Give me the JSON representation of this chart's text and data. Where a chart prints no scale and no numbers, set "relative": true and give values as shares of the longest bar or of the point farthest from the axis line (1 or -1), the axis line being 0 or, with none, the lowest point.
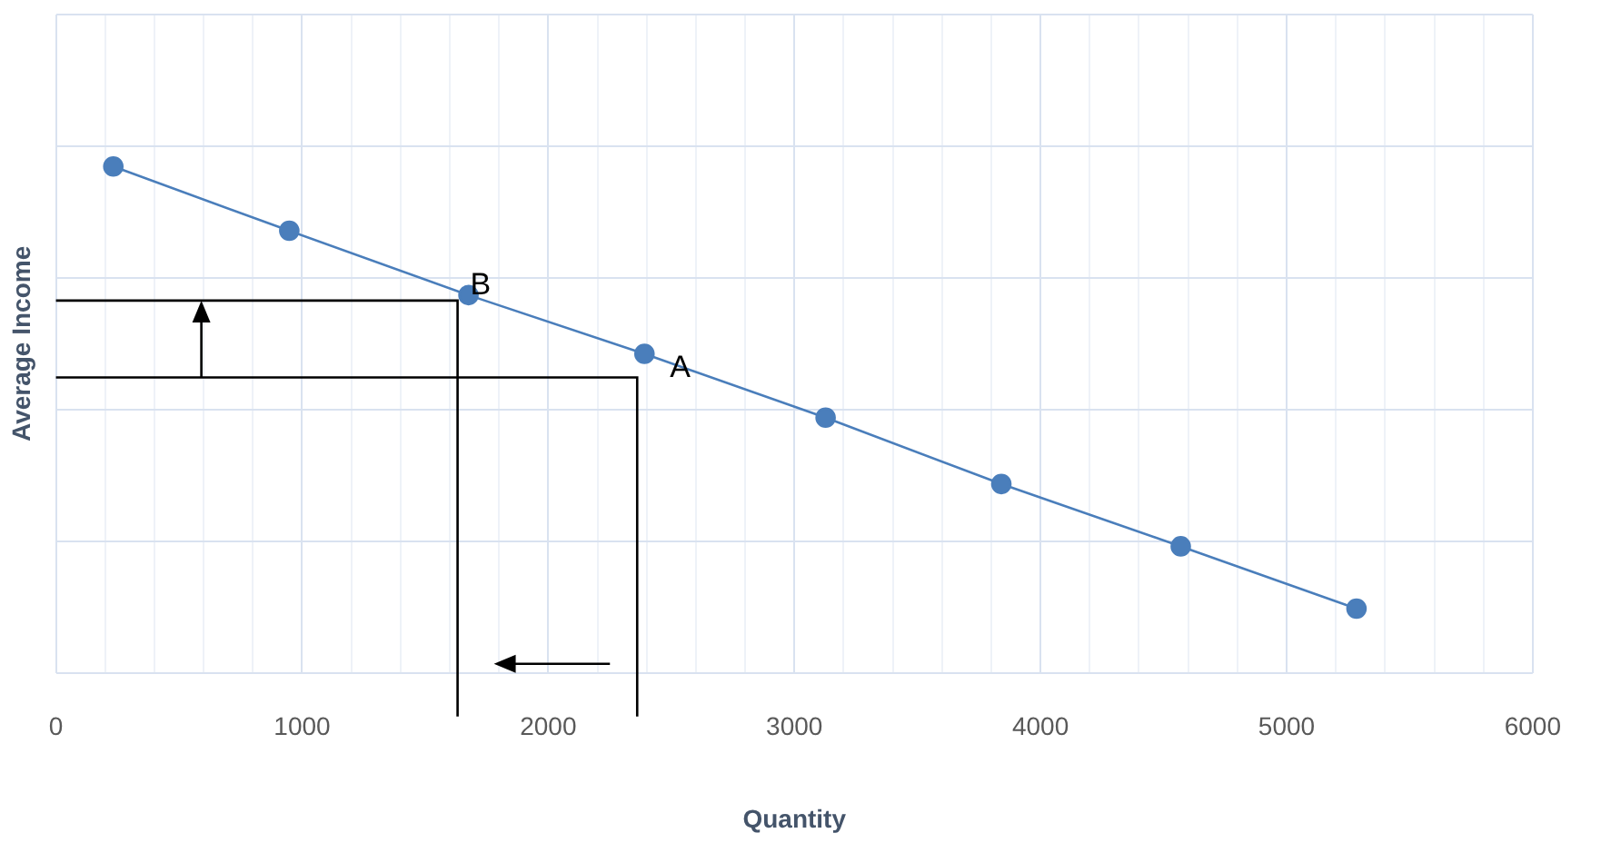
{
  "chart_data": {
    "type": "line",
    "relative": true,
    "xlabel": "Quantity",
    "ylabel": "Average Income",
    "xlim": [
      0,
      6000
    ],
    "xticks": [
      0,
      {
        "value": 200,
        "label": null
      },
      {
        "value": 400,
        "label": null
      },
      {
        "value": 600,
        "label": null
      },
      {
        "value": 800,
        "label": null
      },
      1000,
      {
        "value": 1200,
        "label": null
      },
      {
        "value": 1400,
        "label": null
      },
      {
        "value": 1600,
        "label": null
      },
      {
        "value": 1800,
        "label": null
      },
      2000,
      {
        "value": 2200,
        "label": null
      },
      {
        "value": 2400,
        "label": null
      },
      {
        "value": 2600,
        "label": null
      },
      {
        "value": 2800,
        "label": null
      },
      3000,
      {
        "value": 3200,
        "label": null
      },
      {
        "value": 3400,
        "label": null
      },
      {
        "value": 3600,
        "label": null
      },
      {
        "value": 3800,
        "label": null
      },
      4000,
      {
        "value": 4200,
        "label": null
      },
      {
        "value": 4400,
        "label": null
      },
      {
        "value": 4600,
        "label": null
      },
      {
        "value": 4800,
        "label": null
      },
      5000,
      {
        "value": 5200,
        "label": null
      },
      {
        "value": 5400,
        "label": null
      },
      {
        "value": 5600,
        "label": null
      },
      {
        "value": 5800,
        "label": null
      },
      6000
    ],
    "x": [
      233,
      948,
      1676,
      2391,
      3127,
      3841,
      4570,
      5284
    ],
    "series": [
      {
        "color": "#4a7ebb",
        "values": [
          1,
          0.873,
          0.746,
          0.63,
          0.504,
          0.373,
          0.25,
          0.127
        ]
      }
    ],
    "marker": "circle",
    "grid": true,
    "annotations": [
      {
        "text": "B",
        "x": 1676,
        "y": 0.746
      },
      {
        "text": "A",
        "x": 2391,
        "y": 0.63
      }
    ]
  }
}
